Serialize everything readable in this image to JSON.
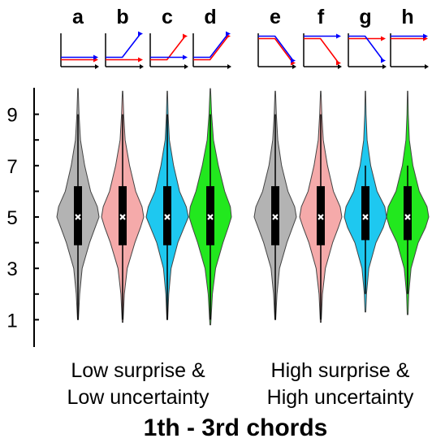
{
  "chart_data": {
    "type": "violin",
    "title": "1th - 3rd chords",
    "ylim": [
      0,
      10
    ],
    "yticks": [
      "1",
      "3",
      "5",
      "7",
      "9"
    ],
    "groups": [
      {
        "label_line1": "Low surprise &",
        "label_line2": "Low uncertainty",
        "columns": [
          "a",
          "b",
          "c",
          "d"
        ]
      },
      {
        "label_line1": "High surprise &",
        "label_line2": "High uncertainty",
        "columns": [
          "e",
          "f",
          "g",
          "h"
        ]
      }
    ],
    "series": [
      {
        "label": "a",
        "color": "#b3b3b3",
        "min": 1,
        "max": 10,
        "q1": 3.9,
        "median": 5,
        "q3": 6.2,
        "mean": 5.0,
        "whisker_low": 1,
        "whisker_high": 9,
        "width_profile": [
          [
            1,
            0.02
          ],
          [
            2,
            0.08
          ],
          [
            3,
            0.2
          ],
          [
            4,
            0.55
          ],
          [
            4.6,
            0.82
          ],
          [
            5,
            1.0
          ],
          [
            5.4,
            0.92
          ],
          [
            6,
            0.6
          ],
          [
            7,
            0.32
          ],
          [
            8,
            0.12
          ],
          [
            9,
            0.05
          ],
          [
            10,
            0.01
          ]
        ]
      },
      {
        "label": "b",
        "color": "#f5aaaa",
        "min": 0.9,
        "max": 9.9,
        "q1": 3.9,
        "median": 5,
        "q3": 6.2,
        "mean": 5.0,
        "whisker_low": 1,
        "whisker_high": 9,
        "width_profile": [
          [
            0.9,
            0.02
          ],
          [
            2,
            0.08
          ],
          [
            3,
            0.22
          ],
          [
            4,
            0.58
          ],
          [
            4.6,
            0.85
          ],
          [
            5,
            1.0
          ],
          [
            5.4,
            0.92
          ],
          [
            6,
            0.62
          ],
          [
            7,
            0.33
          ],
          [
            8,
            0.12
          ],
          [
            9,
            0.05
          ],
          [
            9.9,
            0.01
          ]
        ]
      },
      {
        "label": "c",
        "color": "#1ec8f0",
        "min": 1,
        "max": 9.9,
        "q1": 3.9,
        "median": 5,
        "q3": 6.2,
        "mean": 5.0,
        "whisker_low": 1,
        "whisker_high": 9,
        "width_profile": [
          [
            1,
            0.02
          ],
          [
            2,
            0.07
          ],
          [
            3,
            0.18
          ],
          [
            4,
            0.5
          ],
          [
            4.6,
            0.8
          ],
          [
            5,
            1.0
          ],
          [
            5.4,
            0.9
          ],
          [
            6,
            0.58
          ],
          [
            7,
            0.3
          ],
          [
            8,
            0.1
          ],
          [
            9,
            0.04
          ],
          [
            9.9,
            0.01
          ]
        ]
      },
      {
        "label": "d",
        "color": "#22e81e",
        "min": 0.8,
        "max": 10,
        "q1": 3.9,
        "median": 5,
        "q3": 6.2,
        "mean": 5.0,
        "whisker_low": 1,
        "whisker_high": 9,
        "width_profile": [
          [
            0.8,
            0.02
          ],
          [
            2,
            0.1
          ],
          [
            3,
            0.25
          ],
          [
            4,
            0.6
          ],
          [
            4.6,
            0.85
          ],
          [
            5,
            1.0
          ],
          [
            5.4,
            0.95
          ],
          [
            6,
            0.68
          ],
          [
            7,
            0.38
          ],
          [
            8,
            0.15
          ],
          [
            9,
            0.06
          ],
          [
            10,
            0.01
          ]
        ]
      },
      {
        "label": "e",
        "color": "#b3b3b3",
        "min": 1,
        "max": 9.9,
        "q1": 3.9,
        "median": 5,
        "q3": 6.2,
        "mean": 5.0,
        "whisker_low": 1,
        "whisker_high": 9,
        "width_profile": [
          [
            1,
            0.02
          ],
          [
            2,
            0.08
          ],
          [
            3,
            0.2
          ],
          [
            4,
            0.55
          ],
          [
            4.6,
            0.82
          ],
          [
            5,
            1.0
          ],
          [
            5.4,
            0.92
          ],
          [
            6,
            0.6
          ],
          [
            7,
            0.3
          ],
          [
            8,
            0.12
          ],
          [
            9,
            0.05
          ],
          [
            9.9,
            0.01
          ]
        ]
      },
      {
        "label": "f",
        "color": "#f5aaaa",
        "min": 0.9,
        "max": 9.9,
        "q1": 3.9,
        "median": 5,
        "q3": 6.2,
        "mean": 5.0,
        "whisker_low": 1,
        "whisker_high": 9,
        "width_profile": [
          [
            0.9,
            0.02
          ],
          [
            2,
            0.08
          ],
          [
            3,
            0.22
          ],
          [
            4,
            0.56
          ],
          [
            4.6,
            0.84
          ],
          [
            5,
            1.0
          ],
          [
            5.4,
            0.92
          ],
          [
            6,
            0.6
          ],
          [
            7,
            0.32
          ],
          [
            8,
            0.12
          ],
          [
            9,
            0.05
          ],
          [
            9.9,
            0.01
          ]
        ]
      },
      {
        "label": "g",
        "color": "#1ec8f0",
        "min": 1.3,
        "max": 9.9,
        "q1": 4.1,
        "median": 5,
        "q3": 6.2,
        "mean": 5.0,
        "whisker_low": 2,
        "whisker_high": 7,
        "width_profile": [
          [
            1.3,
            0.02
          ],
          [
            2,
            0.05
          ],
          [
            3,
            0.16
          ],
          [
            4,
            0.5
          ],
          [
            4.6,
            0.85
          ],
          [
            5,
            1.0
          ],
          [
            5.4,
            0.92
          ],
          [
            6,
            0.55
          ],
          [
            7,
            0.25
          ],
          [
            8,
            0.08
          ],
          [
            9,
            0.03
          ],
          [
            9.9,
            0.01
          ]
        ]
      },
      {
        "label": "h",
        "color": "#22e81e",
        "min": 1.2,
        "max": 9.9,
        "q1": 4.1,
        "median": 5,
        "q3": 6.2,
        "mean": 5.0,
        "whisker_low": 2,
        "whisker_high": 7,
        "width_profile": [
          [
            1.2,
            0.02
          ],
          [
            2,
            0.05
          ],
          [
            3,
            0.16
          ],
          [
            4,
            0.5
          ],
          [
            4.6,
            0.85
          ],
          [
            5,
            1.0
          ],
          [
            5.4,
            0.92
          ],
          [
            6,
            0.55
          ],
          [
            7,
            0.25
          ],
          [
            8,
            0.08
          ],
          [
            9,
            0.03
          ],
          [
            9.9,
            0.01
          ]
        ]
      }
    ],
    "icons": {
      "a": {
        "red": "flat-low",
        "blue": "flat-low"
      },
      "b": {
        "red": "flat-low",
        "blue": "rise-high"
      },
      "c": {
        "red": "rise-high",
        "blue": "flat-low"
      },
      "d": {
        "red": "rise-high",
        "blue": "rise-high"
      },
      "e": {
        "red": "fall-low",
        "blue": "fall-low"
      },
      "f": {
        "red": "fall-low",
        "blue": "flat-high"
      },
      "g": {
        "red": "flat-high",
        "blue": "fall-low"
      },
      "h": {
        "red": "flat-high",
        "blue": "flat-high"
      }
    },
    "colors": {
      "icon_red": "#ff0000",
      "icon_blue": "#0000ff",
      "box": "#000000",
      "mean_marker": "#ffffff"
    }
  }
}
